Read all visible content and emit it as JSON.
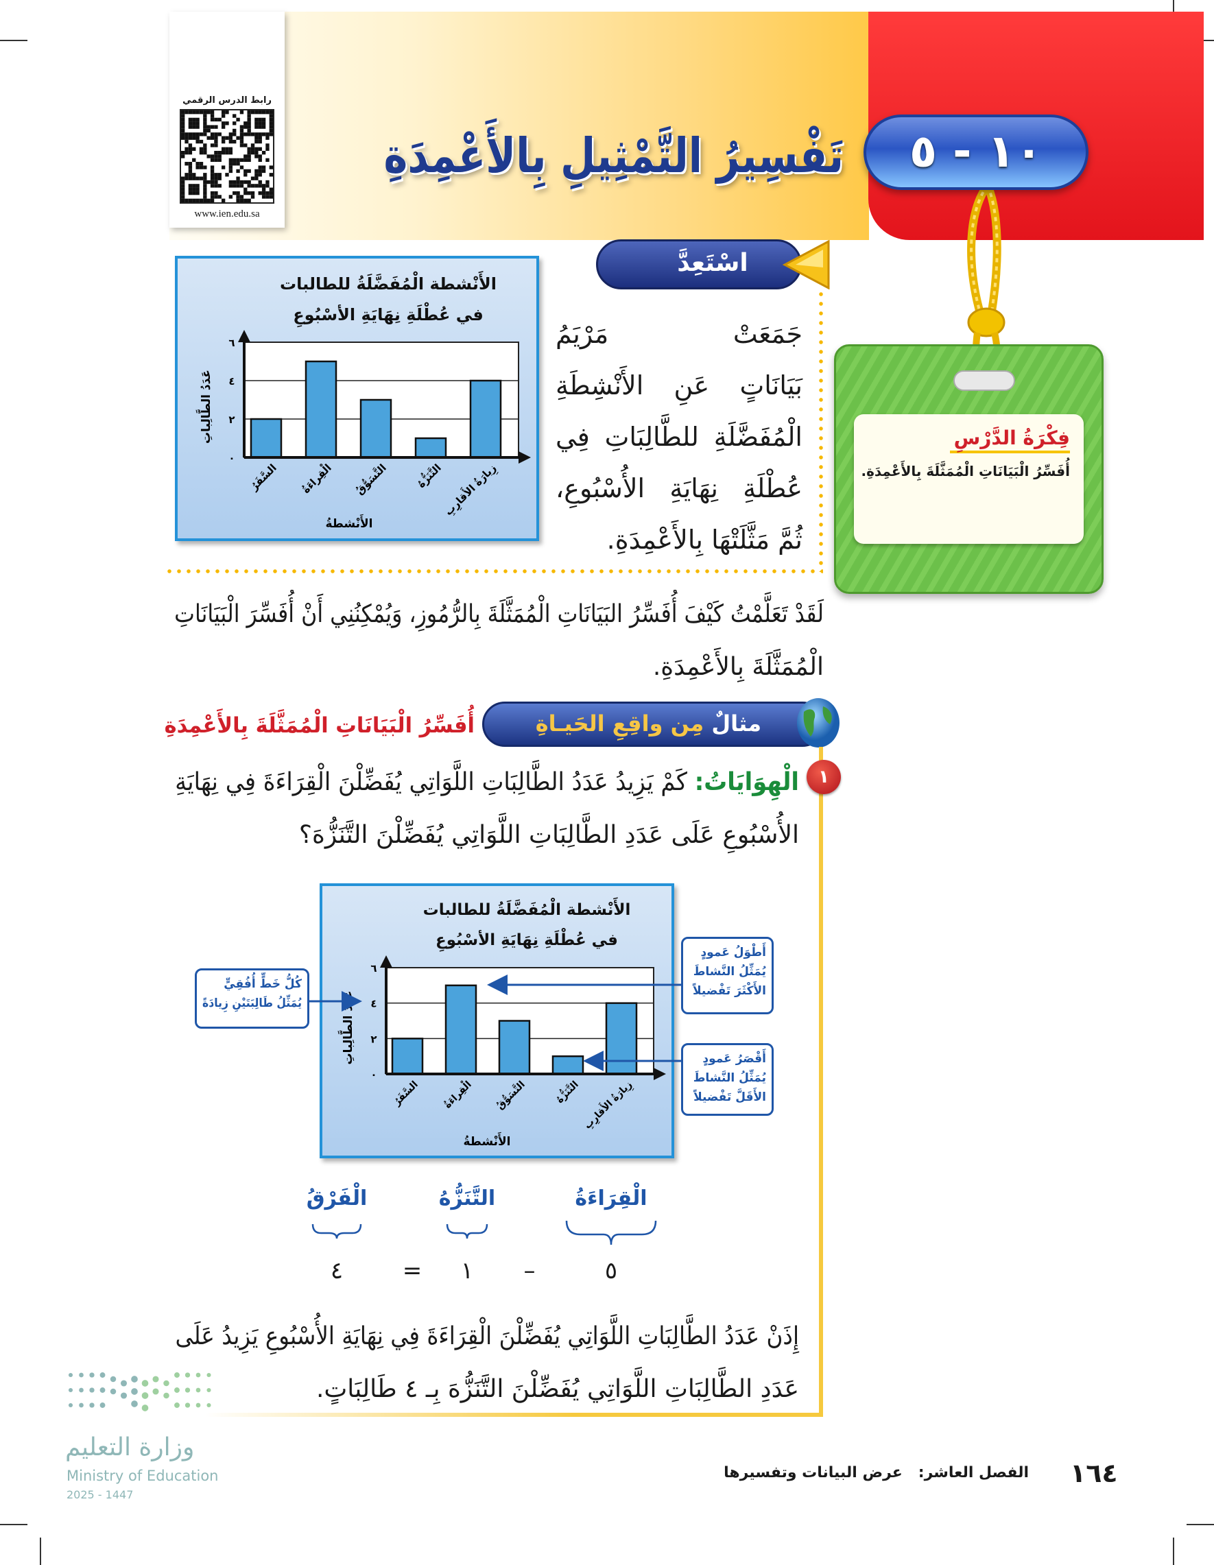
{
  "qr": {
    "caption": "رابط الدرس الرقمي",
    "url": "www.ien.edu.sa"
  },
  "lesson": {
    "number": "١٠ - ٥",
    "title": "تَفْسِيرُ التَّمْثِيلِ بِالأَعْمِدَةِ"
  },
  "lesson_idea": {
    "heading": "فِكْرَةُ الدَّرْسِ",
    "text": "أُفَسِّرُ الْبَيَانَاتِ الْمُمَثَّلَةَ بِالأَعْمِدَةِ."
  },
  "prepare": {
    "label": "اسْتَعِدَّ",
    "lines": [
      "جَمَعَتْ مَرْيَمُ",
      "بَيَانَاتٍ عَنِ الأَنْشِطَةِ",
      "الْمُفَضَّلَةِ للطَّالِبَاتِ فِي",
      "عُطْلَةِ نِهَايَةِ الأُسْبُوعِ،",
      "ثُمَّ مَثَّلَتْهَا بِالأَعْمِدَةِ."
    ]
  },
  "intro": {
    "lines": [
      "لَقَدْ تَعَلَّمْتُ كَيْفَ أُفَسِّرُ البَيَانَاتِ الْمُمَثَّلَةَ بِالرُّمُوزِ، وَيُمْكِنُنِي أَنْ أُفَسِّرَ الْبَيَانَاتِ",
      "الْمُمَثَّلَةَ بِالأَعْمِدَةِ."
    ]
  },
  "example": {
    "banner_prefix": "مثالٌ",
    "banner": "مِن واقِعِ الحَيـاةِ",
    "heading": "أُفَسِّرُ الْبَيَانَاتِ الْمُمَثَّلَةَ بِالأَعْمِدَةِ",
    "number": "١",
    "topic": "الْهِوَايَاتُ:",
    "question_lines": [
      "كَمْ يَزِيدُ عَدَدُ الطَّالِبَاتِ اللَّوَاتِي يُفَضِّلْنَ الْقِرَاءَةَ فِي نِهَايَةِ",
      "الأُسْبُوعِ عَلَى عَدَدِ الطَّالِبَاتِ اللَّوَاتِي يُفَضِّلْنَ التَّنَزُّهَ؟"
    ]
  },
  "callouts": {
    "gridline": [
      "كُلُّ خَطٍّ أُفُقِيٍّ",
      "يُمَثِّلُ طَالِبَتَيْنِ زِيادَةً"
    ],
    "tallest": [
      "أَطْوَلُ عَمودٍ",
      "يُمَثِّلُ النَّشاطَ",
      "الأَكْثَرَ تَفْضيلاً"
    ],
    "shortest": [
      "أَقْصَرُ عَمودٍ",
      "يُمَثِّلُ النَّشاطَ",
      "الأَقَلَّ تَفْضيلاً"
    ]
  },
  "calculation": {
    "labels": {
      "reading": "الْقِرَاءَةُ",
      "outing": "التَّنَزُّهُ",
      "difference": "الْفَرْقُ"
    },
    "reading": "٥",
    "minus": "–",
    "outing": "١",
    "equals": "=",
    "difference": "٤"
  },
  "conclusion": {
    "lines": [
      "إِذَنْ عَدَدُ الطَّالِبَاتِ اللَّوَاتِي يُفَضِّلْنَ الْقِرَاءَةَ فِي نِهَايَةِ الأُسْبُوعِ يَزِيدُ عَلَى",
      "عَدَدِ الطَّالِبَاتِ اللَّوَاتِي يُفَضِّلْنَ التَّنَزُّهَ بِـ ٤ طَالِبَاتٍ."
    ]
  },
  "footer": {
    "page": "١٦٤",
    "chapter": "الفصل العاشر:",
    "chapter_title": "عرض البيانات وتفسيرها"
  },
  "logo": {
    "arabic": "وزارة التعليم",
    "english": "Ministry of Education",
    "year": "2025 - 1447"
  },
  "colors": {
    "bar": "#4ba3dc",
    "accent_red": "#d0202a",
    "accent_blue": "#1f56a8",
    "rail_yellow": "#f6c93e"
  },
  "chart_data": [
    {
      "type": "bar",
      "title_lines": [
        "الأَنْشطة الْمُفَضَّلَةُ للطالبات",
        "في عُطْلَةِ نِهَايَةِ الأسْبُوعِ"
      ],
      "categories": [
        "السَّفَرُ",
        "الْقِراءَةُ",
        "التَّسَوُّقُ",
        "التَّنَزُّهُ",
        "زِيارَةُ الأَقارِبِ"
      ],
      "values": [
        2,
        5,
        3,
        1,
        4
      ],
      "xlabel": "الأَنْشطةُ",
      "ylabel": "عَدَدُ الطَّالِباتِ",
      "ylim": [
        0,
        6
      ],
      "yticks": [
        0,
        2,
        4,
        6
      ],
      "ytick_labels": [
        "٠",
        "٢",
        "٤",
        "٦"
      ],
      "grid": true
    },
    {
      "type": "bar",
      "title_lines": [
        "الأَنْشطة الْمُفَضَّلَةُ للطالبات",
        "في عُطْلَةِ نِهَايَةِ الأسْبُوعِ"
      ],
      "categories": [
        "السَّفَرُ",
        "الْقِراءَةُ",
        "التَّسَوُّقُ",
        "التَّنَزُّهُ",
        "زِيارَةُ الأَقارِبِ"
      ],
      "values": [
        2,
        5,
        3,
        1,
        4
      ],
      "xlabel": "الأَنْشطةُ",
      "ylabel": "عَدَدُ الطَّالِباتِ",
      "ylim": [
        0,
        6
      ],
      "yticks": [
        0,
        2,
        4,
        6
      ],
      "ytick_labels": [
        "٠",
        "٢",
        "٤",
        "٦"
      ],
      "grid": true
    }
  ]
}
